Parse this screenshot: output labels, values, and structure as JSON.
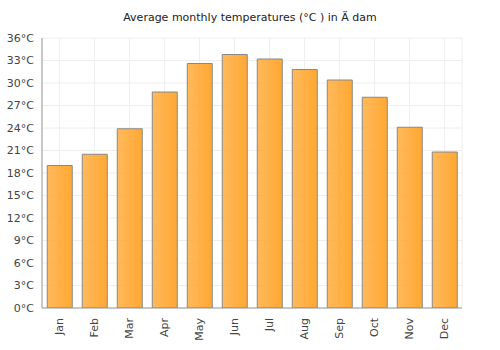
{
  "chart_data": {
    "type": "bar",
    "title": "Average monthly temperatures (°C ) in Ä dam",
    "categories": [
      "Jan",
      "Feb",
      "Mar",
      "Apr",
      "May",
      "Jun",
      "Jul",
      "Aug",
      "Sep",
      "Oct",
      "Nov",
      "Dec"
    ],
    "values": [
      19.0,
      20.5,
      23.9,
      28.8,
      32.6,
      33.8,
      33.2,
      31.8,
      30.4,
      28.1,
      24.1,
      20.8
    ],
    "color": "#ffa833",
    "ylim": [
      0,
      36
    ],
    "yticks": [
      {
        "value": 0,
        "label": "0°C"
      },
      {
        "value": 3,
        "label": "3°C"
      },
      {
        "value": 6,
        "label": "6°C"
      },
      {
        "value": 9,
        "label": "9°C"
      },
      {
        "value": 12,
        "label": "12°C"
      },
      {
        "value": 15,
        "label": "15°C"
      },
      {
        "value": 18,
        "label": "18°C"
      },
      {
        "value": 21,
        "label": "21°C"
      },
      {
        "value": 24,
        "label": "24°C"
      },
      {
        "value": 27,
        "label": "27°C"
      },
      {
        "value": 30,
        "label": "30°C"
      },
      {
        "value": 33,
        "label": "33°C"
      },
      {
        "value": 36,
        "label": "36°C"
      }
    ],
    "grid": true
  }
}
